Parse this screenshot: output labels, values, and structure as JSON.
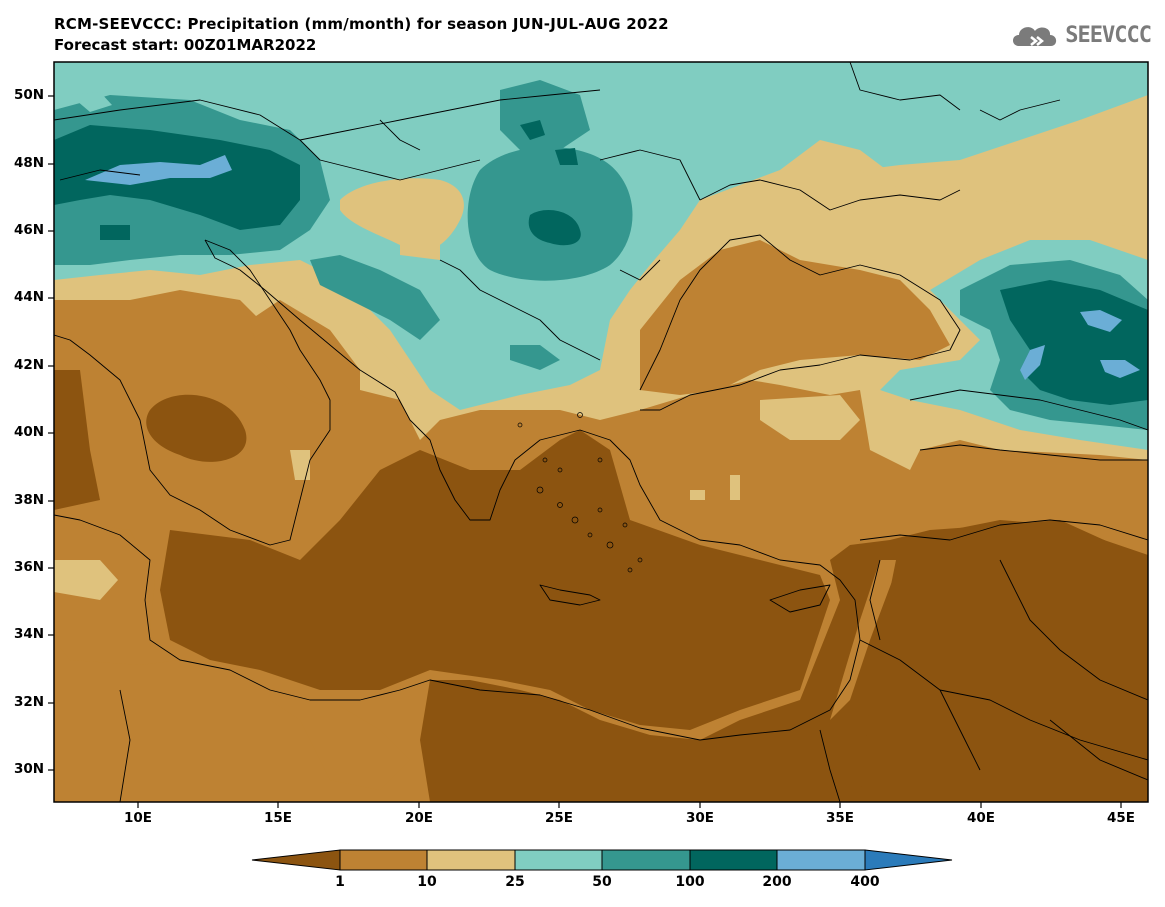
{
  "title": "RCM-SEEVCCC: Precipitation (mm/month) for season JUN-JUL-AUG 2022",
  "subtitle": "Forecast start: 00Z01MAR2022",
  "logo": {
    "text": "SEEVCCC",
    "icon": "cloud-icon"
  },
  "map": {
    "lat_labels": [
      "50N",
      "48N",
      "46N",
      "44N",
      "42N",
      "40N",
      "38N",
      "36N",
      "34N",
      "32N",
      "30N"
    ],
    "lon_labels": [
      "10E",
      "15E",
      "20E",
      "25E",
      "30E",
      "35E",
      "40E",
      "45E"
    ],
    "lon_range": [
      7,
      46
    ],
    "lat_range": [
      29,
      51
    ]
  },
  "legend": {
    "levels": [
      "1",
      "10",
      "25",
      "50",
      "100",
      "200",
      "400"
    ],
    "colors": [
      "#8c5410",
      "#be8233",
      "#dfc27d",
      "#80cdc1",
      "#35978f",
      "#01665e",
      "#6baed6",
      "#2b7bba"
    ]
  }
}
